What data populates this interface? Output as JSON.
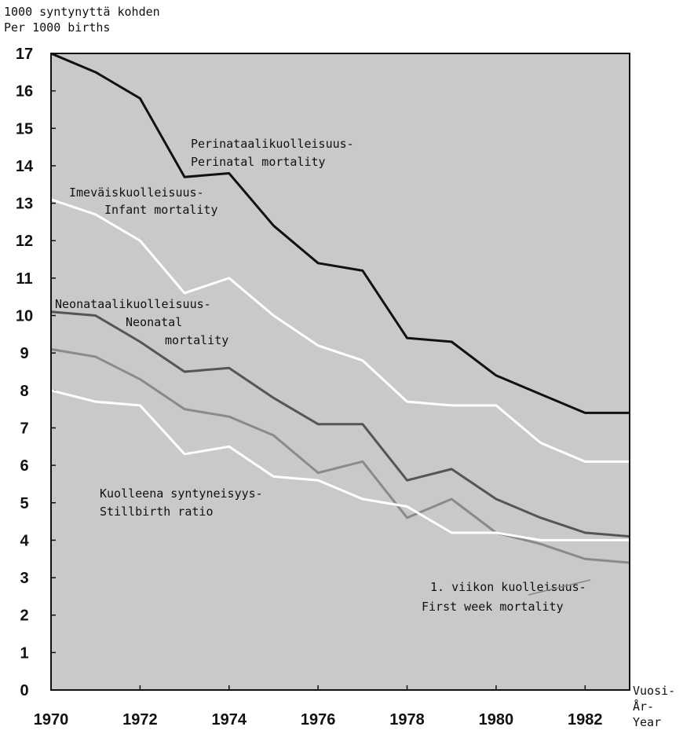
{
  "chart_data": {
    "type": "line",
    "y_label": [
      "1000 syntynyttä kohden",
      "Per 1000 births"
    ],
    "x_label": [
      "Vuosi-",
      "År-",
      "Year"
    ],
    "x": [
      1970,
      1971,
      1972,
      1973,
      1974,
      1975,
      1976,
      1977,
      1978,
      1979,
      1980,
      1981,
      1982,
      1983
    ],
    "xlim": [
      1970,
      1983
    ],
    "xticks": [
      1970,
      1972,
      1974,
      1976,
      1978,
      1980,
      1982
    ],
    "ylim": [
      0,
      17
    ],
    "yticks": [
      0,
      1,
      2,
      3,
      4,
      5,
      6,
      7,
      8,
      9,
      10,
      11,
      12,
      13,
      14,
      15,
      16,
      17
    ],
    "background": "#c9c9c9",
    "series": [
      {
        "label": [
          "Perinataalikuolleisuus-",
          "Perinatal mortality"
        ],
        "color": "#111111",
        "values": [
          17.0,
          16.5,
          15.8,
          13.7,
          13.8,
          12.4,
          11.4,
          11.2,
          9.4,
          9.3,
          8.4,
          7.9,
          7.4,
          7.4
        ]
      },
      {
        "label": [
          "Imeväiskuolleisuus-",
          "Infant mortality"
        ],
        "color": "#ffffff",
        "values": [
          13.1,
          12.7,
          12.0,
          10.6,
          11.0,
          10.0,
          9.2,
          8.8,
          7.7,
          7.6,
          7.6,
          6.6,
          6.1,
          6.1
        ]
      },
      {
        "label": [
          "Neonataalikuolleisuus-",
          "Neonatal",
          "mortality"
        ],
        "color": "#555555",
        "values": [
          10.1,
          10.0,
          9.3,
          8.5,
          8.6,
          7.8,
          7.1,
          7.1,
          5.6,
          5.9,
          5.1,
          4.6,
          4.2,
          4.1
        ]
      },
      {
        "label": [
          "1. viikon kuolleisuus-",
          "First week mortality"
        ],
        "color": "#8a8a8a",
        "values": [
          9.1,
          8.9,
          8.3,
          7.5,
          7.3,
          6.8,
          5.8,
          6.1,
          4.6,
          5.1,
          4.2,
          3.9,
          3.5,
          3.4
        ]
      },
      {
        "label": [
          "Kuolleena syntyneisyys-",
          "Stillbirth ratio"
        ],
        "color": "#ffffff",
        "values": [
          8.0,
          7.7,
          7.6,
          6.3,
          6.5,
          5.7,
          5.6,
          5.1,
          4.9,
          4.2,
          4.2,
          4.0,
          4.0,
          4.0
        ]
      }
    ]
  }
}
